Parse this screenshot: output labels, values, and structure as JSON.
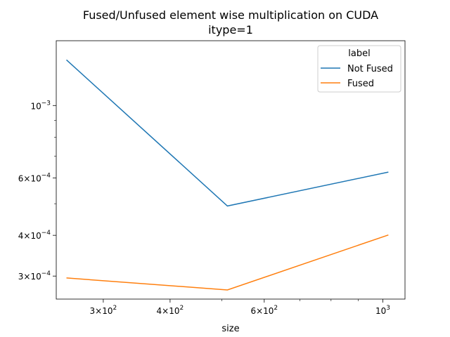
{
  "chart_data": {
    "type": "line",
    "title": "Fused/Unfused element wise multiplication on CUDA",
    "subtitle": "itype=1",
    "xlabel": "size",
    "ylabel": "",
    "xscale": "log",
    "yscale": "log",
    "xlim": [
      245,
      1100
    ],
    "ylim": [
      0.000255,
      0.00158
    ],
    "grid": false,
    "legend": {
      "title": "label",
      "placement": "top-right"
    },
    "x_ticks": [
      {
        "value": 300,
        "mantissa": "3",
        "base": "10",
        "exp": "2"
      },
      {
        "value": 400,
        "mantissa": "4",
        "base": "10",
        "exp": "2"
      },
      {
        "value": 600,
        "mantissa": "6",
        "base": "10",
        "exp": "2"
      },
      {
        "value": 1000,
        "mantissa": "",
        "base": "10",
        "exp": "3"
      }
    ],
    "y_ticks": [
      {
        "value": 0.0003,
        "mantissa": "3",
        "base": "10",
        "exp": "−4"
      },
      {
        "value": 0.0004,
        "mantissa": "4",
        "base": "10",
        "exp": "−4"
      },
      {
        "value": 0.0006,
        "mantissa": "6",
        "base": "10",
        "exp": "−4"
      },
      {
        "value": 0.001,
        "mantissa": "",
        "base": "10",
        "exp": "−3"
      }
    ],
    "x": [
      256,
      512,
      1024
    ],
    "series": [
      {
        "name": "Not Fused",
        "color": "#1f77b4",
        "values": [
          0.00138,
          0.000492,
          0.000625
        ]
      },
      {
        "name": "Fused",
        "color": "#ff7f0e",
        "values": [
          0.000296,
          0.000272,
          0.000401
        ]
      }
    ]
  }
}
